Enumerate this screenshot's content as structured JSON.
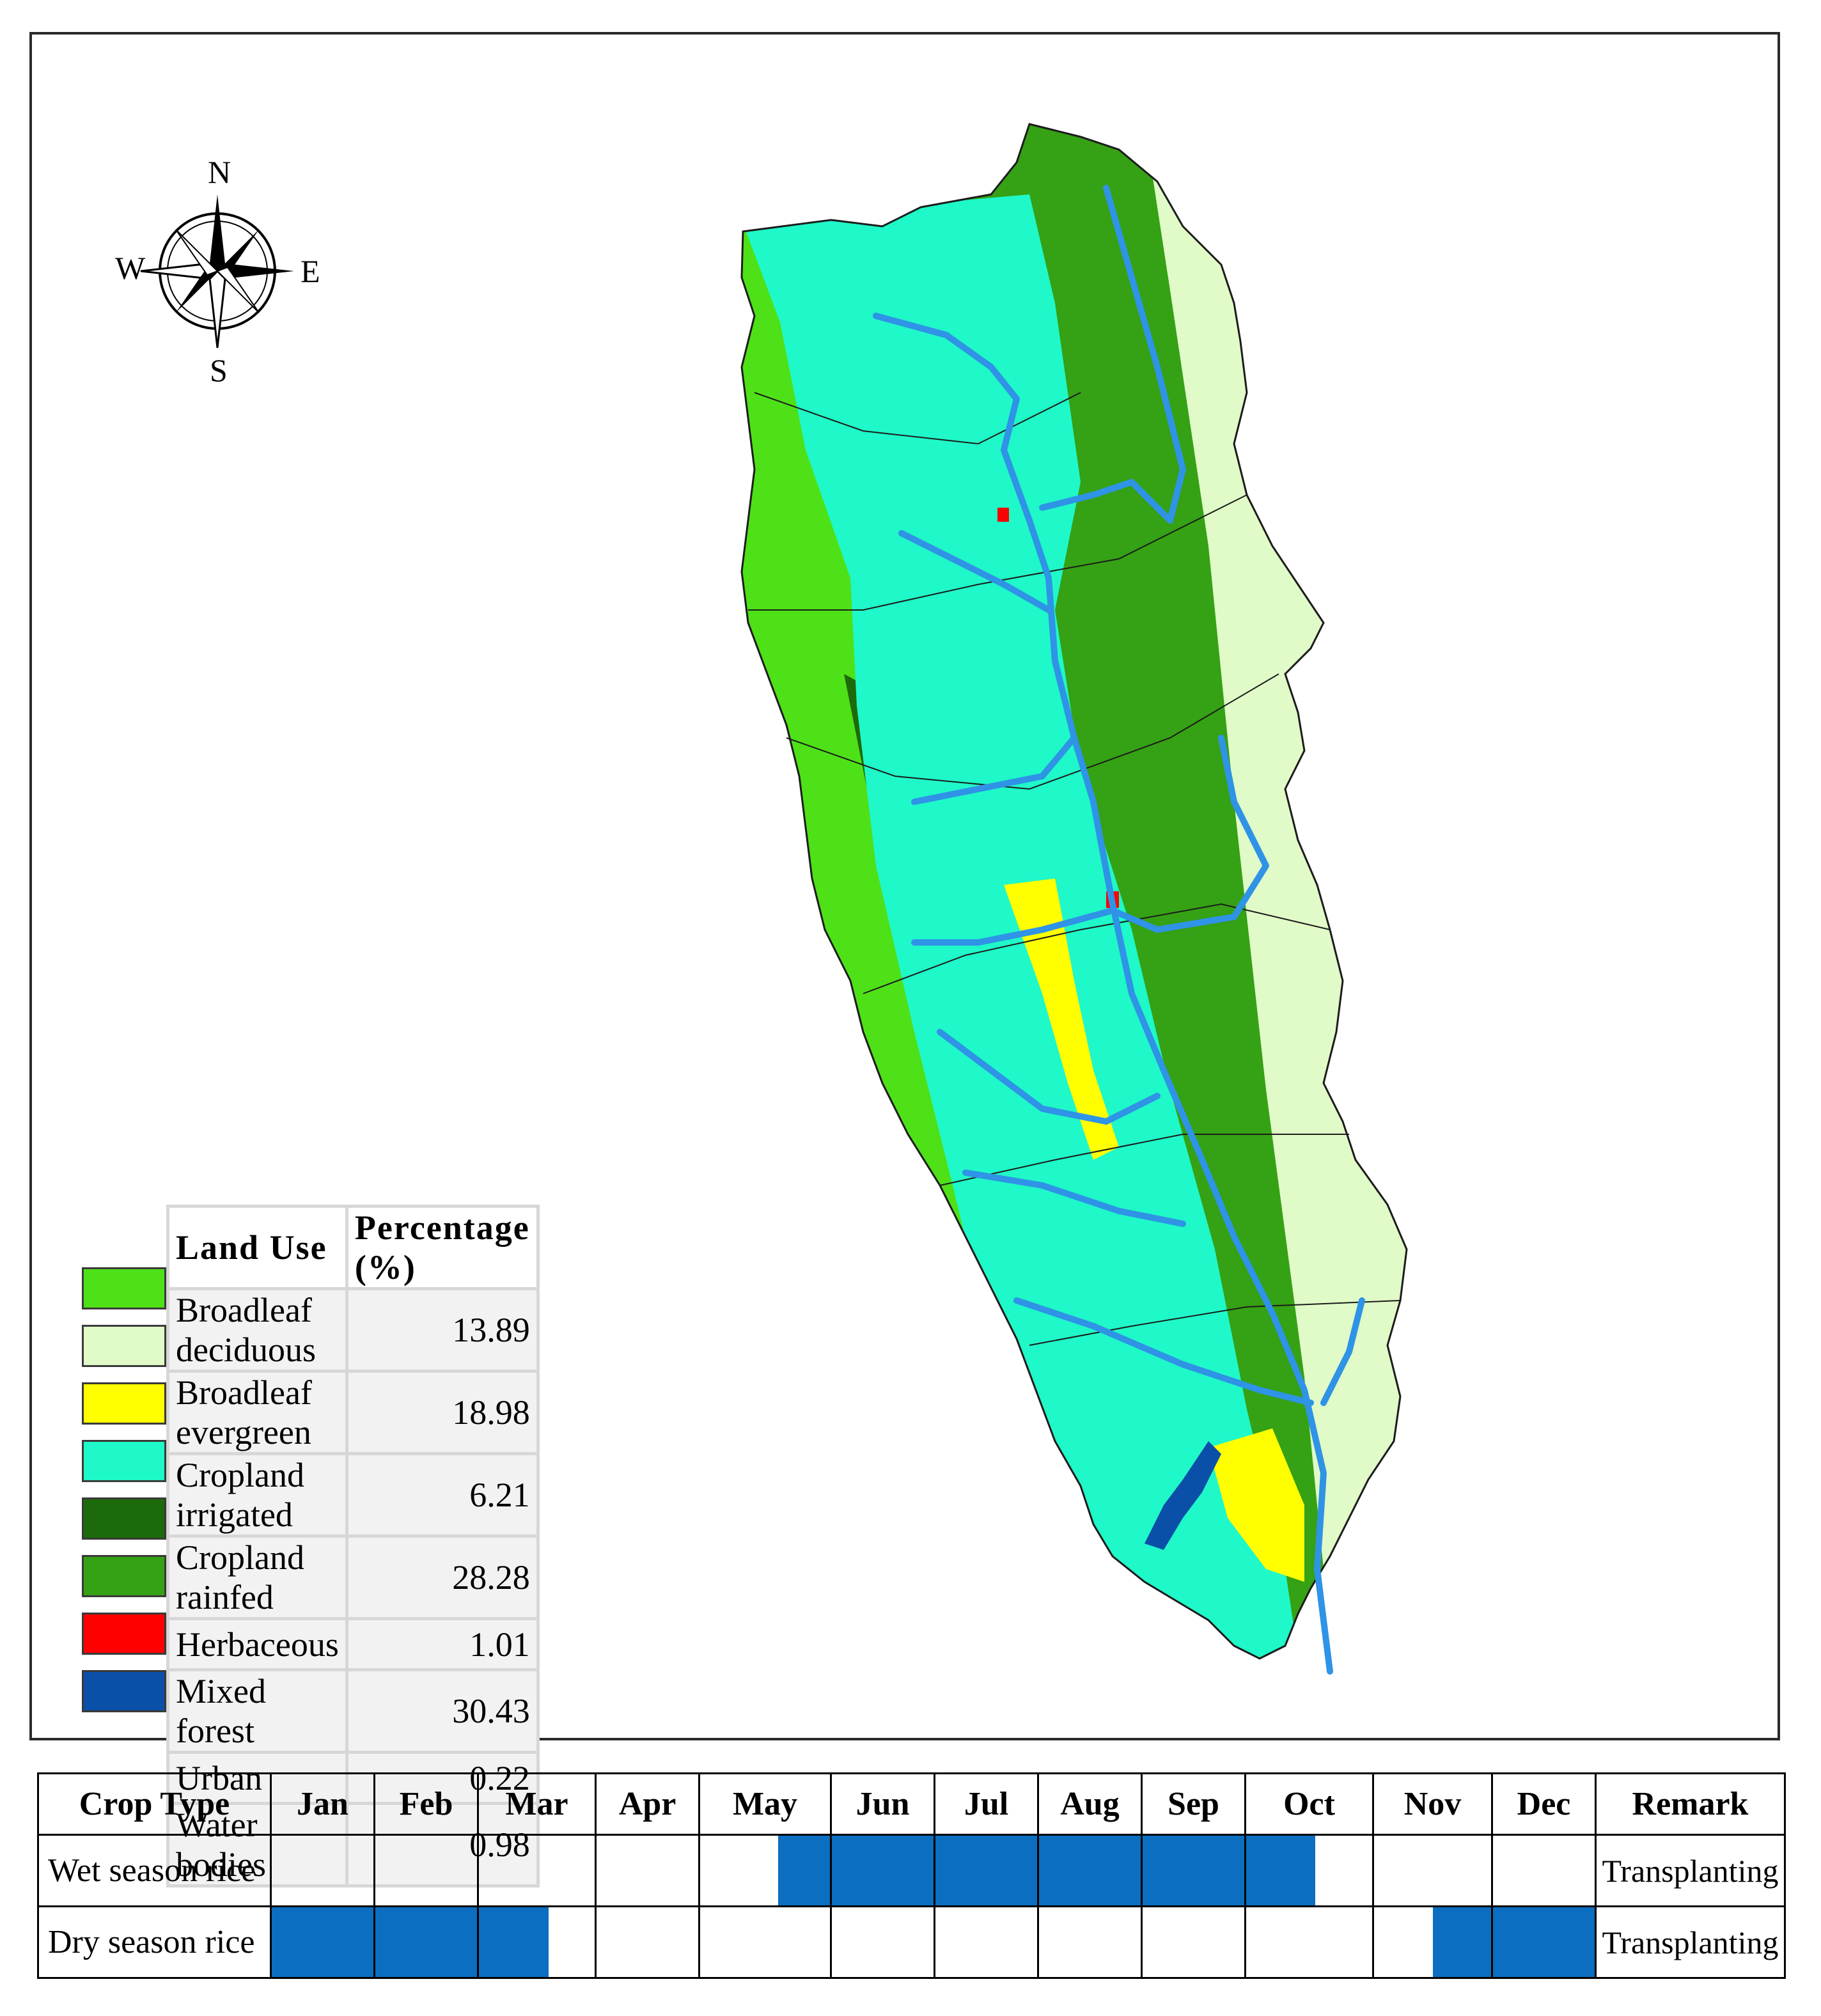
{
  "compass": {
    "north": "N",
    "south": "S",
    "east": "E",
    "west": "W"
  },
  "legend": {
    "header_land_use": "Land Use",
    "header_percentage": "Percentage (%)",
    "rows": [
      {
        "name": "Broadleaf deciduous",
        "value": "13.89",
        "color": "#4ee117"
      },
      {
        "name": "Broadleaf evergreen",
        "value": "18.98",
        "color": "#e0fbc8"
      },
      {
        "name": "Cropland irrigated",
        "value": "6.21",
        "color": "#ffff00"
      },
      {
        "name": "Cropland rainfed",
        "value": "28.28",
        "color": "#1ff8c8"
      },
      {
        "name": "Herbaceous",
        "value": "1.01",
        "color": "#1d6a0a"
      },
      {
        "name": "Mixed forest",
        "value": "30.43",
        "color": "#35a114"
      },
      {
        "name": "Urban",
        "value": "0.22",
        "color": "#ff0000"
      },
      {
        "name": "Water bodies",
        "value": "0.98",
        "color": "#0a4fa8"
      }
    ]
  },
  "map_colors": {
    "river": "#2f93e6",
    "boundary": "#1c1c1c"
  },
  "crop_calendar": {
    "header_crop_type": "Crop Type",
    "months": [
      "Jan",
      "Feb",
      "Mar",
      "Apr",
      "May",
      "Jun",
      "Jul",
      "Aug",
      "Sep",
      "Oct",
      "Nov",
      "Dec"
    ],
    "header_remark": "Remark",
    "bar_color": "#0b6ec0",
    "rows": [
      {
        "crop": "Wet season rice",
        "remark": "Transplanting",
        "periods": [
          {
            "start_month": 5.6,
            "end_month": 10.55
          }
        ]
      },
      {
        "crop": "Dry season rice",
        "remark": "Transplanting",
        "periods": [
          {
            "start_month": 1.0,
            "end_month": 3.6
          },
          {
            "start_month": 11.5,
            "end_month": 13.0
          }
        ]
      }
    ]
  }
}
